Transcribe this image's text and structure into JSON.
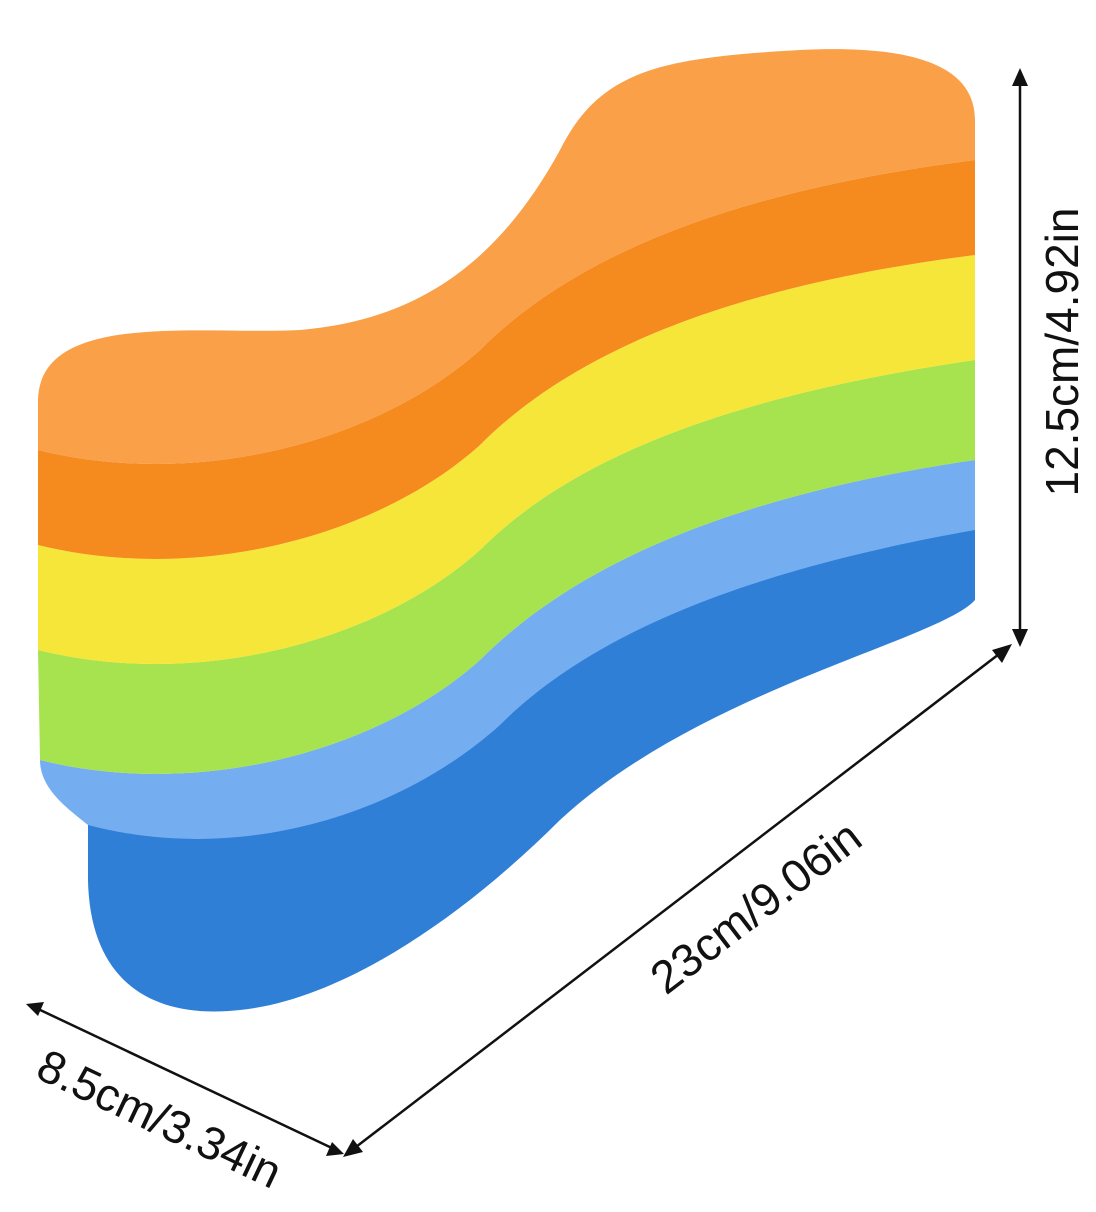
{
  "dimensions": {
    "height": "12.5cm/4.92in",
    "length": "23cm/9.06in",
    "width": "8.5cm/3.34in"
  }
}
